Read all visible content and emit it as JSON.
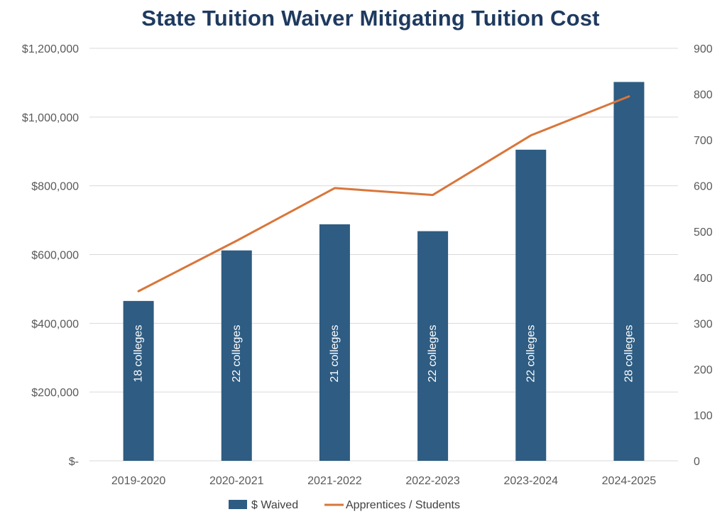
{
  "chart_data": {
    "type": "bar",
    "title": "State Tuition Waiver Mitigating Tuition Cost",
    "categories": [
      "2019-2020",
      "2020-2021",
      "2021-2022",
      "2022-2023",
      "2023-2024",
      "2024-2025"
    ],
    "series": [
      {
        "name": "$ Waived",
        "type": "bar",
        "axis": "left",
        "color": "#2e5c82",
        "values": [
          465000,
          612000,
          688000,
          668000,
          905000,
          1102000
        ],
        "labels": [
          "18 colleges",
          "22 colleges",
          "21 colleges",
          "22 colleges",
          "22 colleges",
          "28 colleges"
        ]
      },
      {
        "name": "Apprentices / Students",
        "type": "line",
        "axis": "right",
        "color": "#d9763a",
        "values": [
          370,
          480,
          595,
          580,
          710,
          795
        ]
      }
    ],
    "y_left": {
      "ylim": [
        0,
        1200000
      ],
      "tick_values": [
        0,
        200000,
        400000,
        600000,
        800000,
        1000000,
        1200000
      ],
      "tick_labels": [
        "$-",
        "$200,000",
        "$400,000",
        "$600,000",
        "$800,000",
        "$1,000,000",
        "$1,200,000"
      ]
    },
    "y_right": {
      "ylim": [
        0,
        900
      ],
      "tick_values": [
        0,
        100,
        200,
        300,
        400,
        500,
        600,
        700,
        800,
        900
      ],
      "tick_labels": [
        "0",
        "100",
        "200",
        "300",
        "400",
        "500",
        "600",
        "700",
        "800",
        "900"
      ]
    },
    "grid": true,
    "legend_position": "bottom",
    "colors": {
      "title": "#1f3a5f",
      "grid": "#d9d9d9",
      "tick_text": "#595959"
    }
  }
}
